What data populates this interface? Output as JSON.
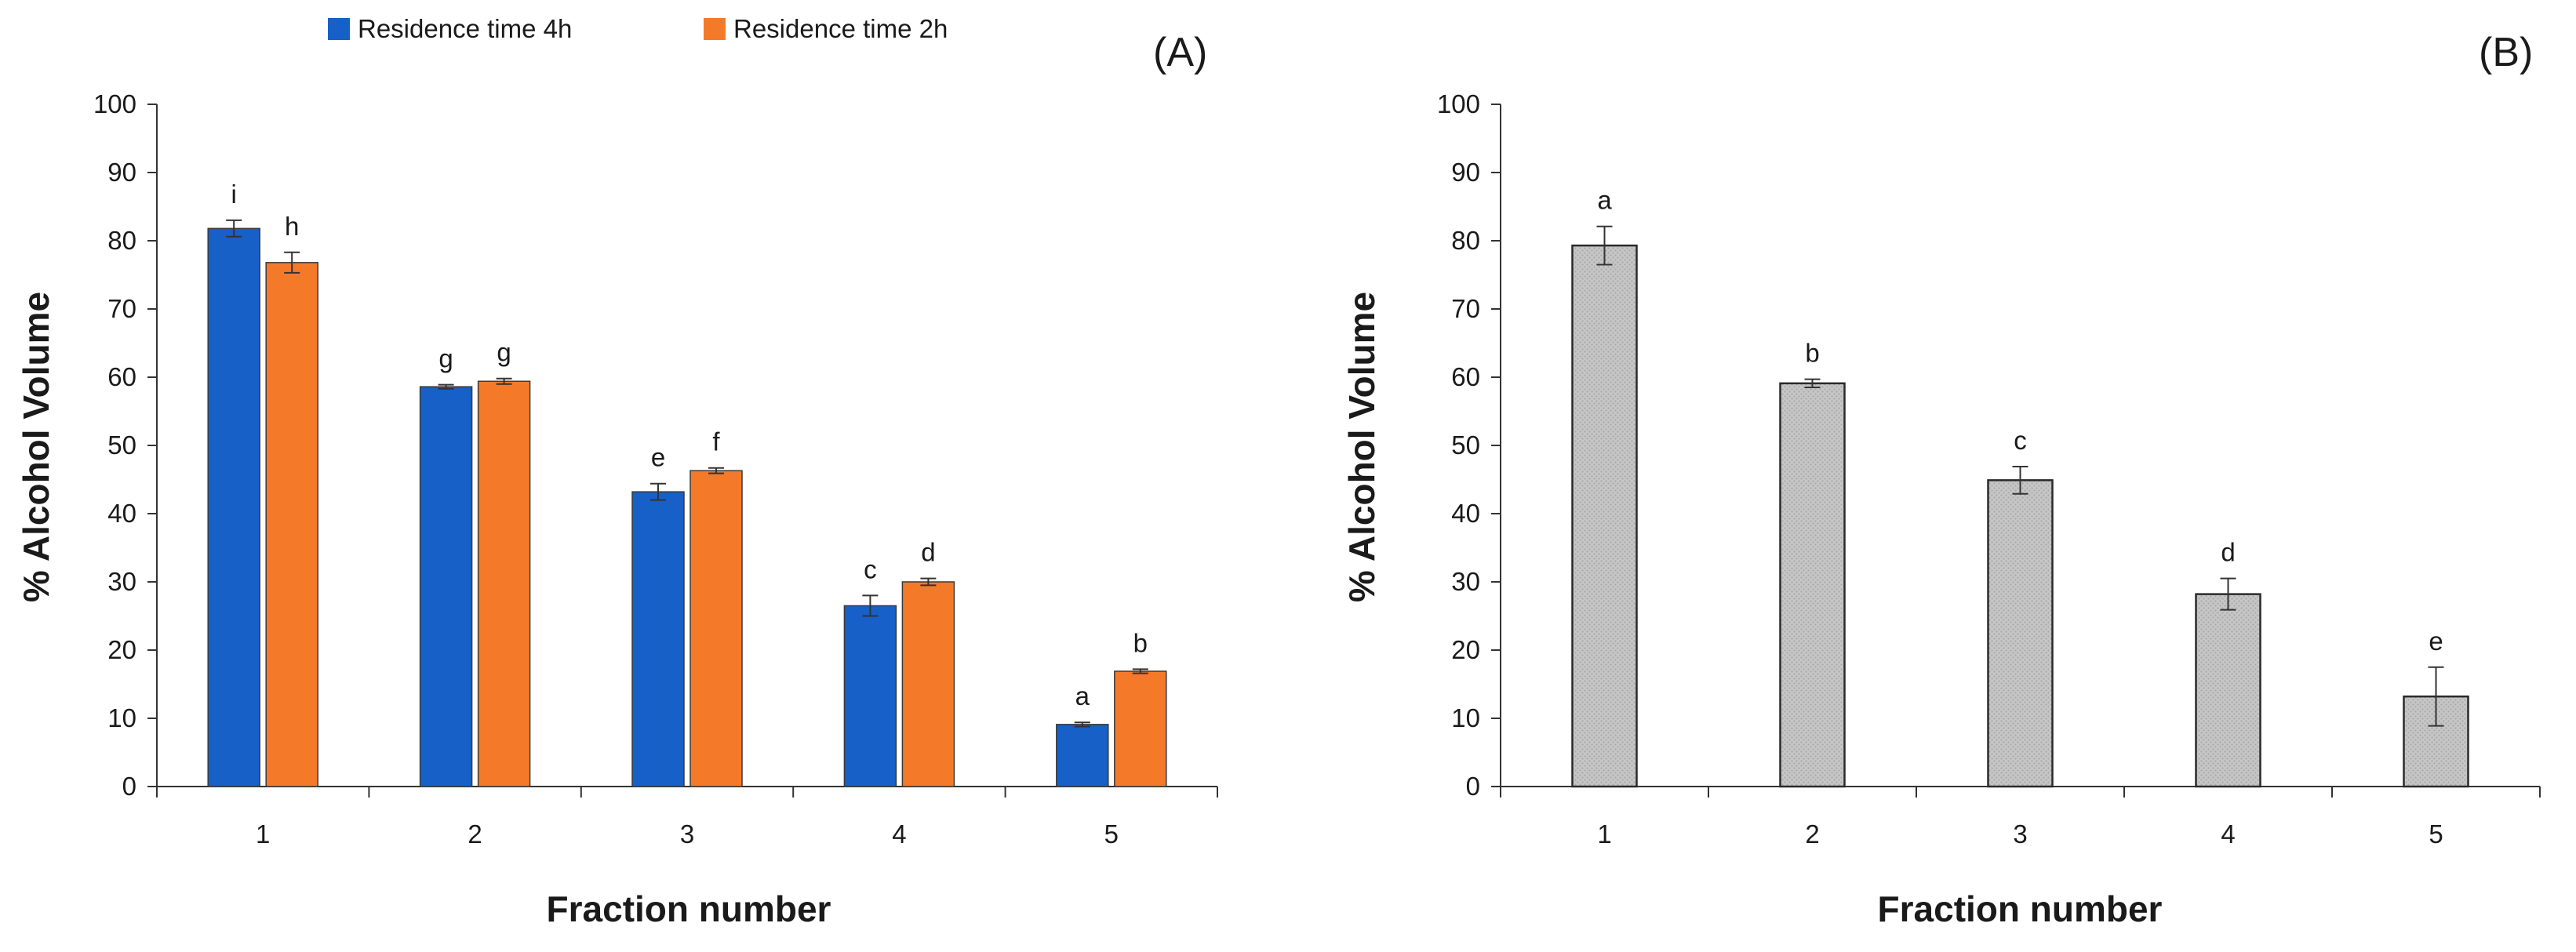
{
  "chart_data": [
    {
      "type": "bar",
      "panel_label": "(A)",
      "categories": [
        "1",
        "2",
        "3",
        "4",
        "5"
      ],
      "series": [
        {
          "name": "Residence time 4h",
          "color": "#1660C8",
          "values": [
            81.8,
            58.6,
            43.2,
            26.5,
            9.1
          ],
          "errors": [
            1.2,
            0.3,
            1.2,
            1.5,
            0.3
          ],
          "sig_letters": [
            "i",
            "g",
            "e",
            "c",
            "a"
          ]
        },
        {
          "name": "Residence time 2h",
          "color": "#F47A2A",
          "values": [
            76.8,
            59.4,
            46.3,
            30.0,
            16.9
          ],
          "errors": [
            1.5,
            0.4,
            0.4,
            0.5,
            0.3
          ],
          "sig_letters": [
            "h",
            "g",
            "f",
            "d",
            "b"
          ]
        }
      ],
      "xlabel": "Fraction number",
      "ylabel": "% Alcohol  Volume",
      "ylim": [
        0,
        100
      ],
      "yticks": [
        0,
        10,
        20,
        30,
        40,
        50,
        60,
        70,
        80,
        90,
        100
      ],
      "legend_position": "top-center",
      "grid": false
    },
    {
      "type": "bar",
      "panel_label": "(B)",
      "categories": [
        "1",
        "2",
        "3",
        "4",
        "5"
      ],
      "series": [
        {
          "name": "",
          "color": "#C8C8C8",
          "values": [
            79.3,
            59.1,
            44.9,
            28.2,
            13.2
          ],
          "errors": [
            2.8,
            0.6,
            2.0,
            2.3,
            4.3
          ],
          "sig_letters": [
            "a",
            "b",
            "c",
            "d",
            "e"
          ]
        }
      ],
      "xlabel": "Fraction number",
      "ylabel": "% Alcohol  Volume",
      "ylim": [
        0,
        100
      ],
      "yticks": [
        0,
        10,
        20,
        30,
        40,
        50,
        60,
        70,
        80,
        90,
        100
      ],
      "grid": false
    }
  ]
}
